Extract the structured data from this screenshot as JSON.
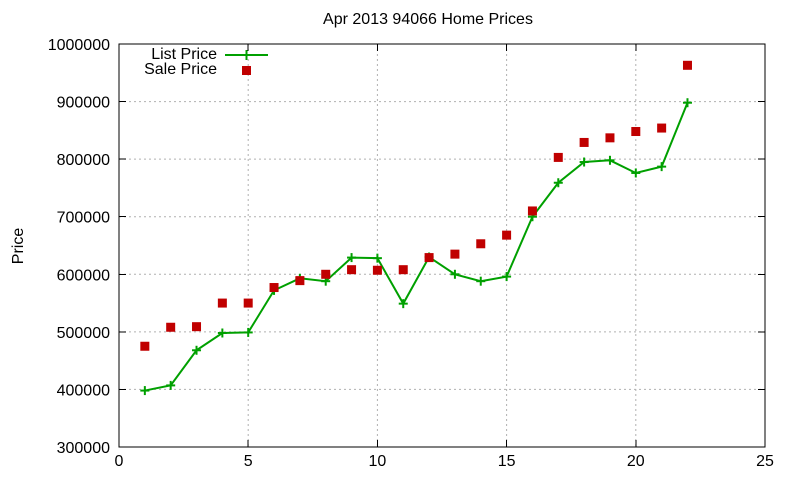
{
  "page": {
    "background": "#ffffff",
    "text_color": "#000000"
  },
  "chart_data": {
    "type": "line",
    "title": "Apr 2013 94066 Home Prices",
    "xlabel": "",
    "ylabel": "Price",
    "xlim": [
      0,
      25
    ],
    "ylim": [
      300000,
      1000000
    ],
    "xticks": [
      0,
      5,
      10,
      15,
      20,
      25
    ],
    "yticks": [
      300000,
      400000,
      500000,
      600000,
      700000,
      800000,
      900000,
      1000000
    ],
    "grid": true,
    "grid_style": "dashed-gray",
    "grid_color": "#b0b0b0",
    "axis_color": "#000000",
    "legend_position": "inside-top-left",
    "x": [
      1,
      2,
      3,
      4,
      5,
      6,
      7,
      8,
      9,
      10,
      11,
      12,
      13,
      14,
      15,
      16,
      17,
      18,
      19,
      20,
      21,
      22
    ],
    "series": [
      {
        "name": "List Price",
        "color": "#00a000",
        "marker": "plus",
        "style": "line-with-markers",
        "values": [
          398000,
          407000,
          468000,
          498000,
          499000,
          572000,
          593000,
          588000,
          629000,
          628000,
          549000,
          630000,
          600000,
          588000,
          596000,
          700000,
          759000,
          795000,
          798000,
          776000,
          787000,
          898000
        ]
      },
      {
        "name": "Sale Price",
        "color": "#c00000",
        "marker": "square",
        "style": "markers-only",
        "values": [
          475000,
          508000,
          509000,
          550000,
          550000,
          577000,
          589000,
          600000,
          608000,
          607000,
          608000,
          629000,
          635000,
          653000,
          668000,
          710000,
          803000,
          829000,
          837000,
          848000,
          854000,
          963000
        ]
      }
    ]
  }
}
